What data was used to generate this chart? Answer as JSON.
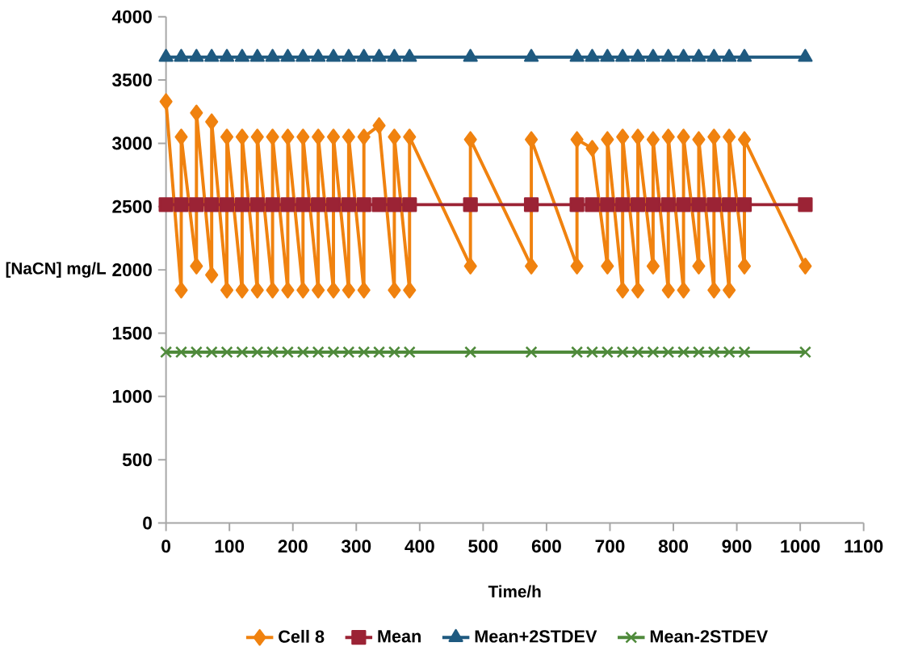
{
  "chart_data": {
    "type": "line",
    "xlabel": "Time/h",
    "ylabel": "[NaCN] mg/L",
    "xlim": [
      0,
      1100
    ],
    "ylim": [
      0,
      4000
    ],
    "xticks": [
      0,
      100,
      200,
      300,
      400,
      500,
      600,
      700,
      800,
      900,
      1000,
      1100
    ],
    "yticks": [
      0,
      500,
      1000,
      1500,
      2000,
      2500,
      3000,
      3500,
      4000
    ],
    "legend": "bottom",
    "series": [
      {
        "name": "Cell 8",
        "color": "#f0820f",
        "marker": "diamond",
        "x": [
          0,
          24,
          24,
          48,
          48,
          72,
          72,
          96,
          96,
          120,
          120,
          144,
          144,
          168,
          168,
          192,
          192,
          216,
          216,
          240,
          240,
          264,
          264,
          288,
          288,
          312,
          312,
          336,
          360,
          360,
          384,
          384,
          480,
          480,
          576,
          576,
          648,
          648,
          672,
          696,
          696,
          720,
          720,
          744,
          744,
          768,
          768,
          792,
          792,
          816,
          816,
          840,
          840,
          864,
          864,
          888,
          888,
          912,
          912,
          1008
        ],
        "values": [
          3330,
          1840,
          3050,
          2030,
          3240,
          1960,
          3170,
          1840,
          3050,
          1840,
          3050,
          1840,
          3050,
          1840,
          3050,
          1840,
          3050,
          1840,
          3050,
          1840,
          3050,
          1840,
          3050,
          1840,
          3050,
          1840,
          3050,
          3140,
          1840,
          3050,
          1840,
          3050,
          2030,
          3030,
          2030,
          3030,
          2030,
          3030,
          2960,
          2030,
          3030,
          1840,
          3050,
          1840,
          3050,
          2030,
          3030,
          1840,
          3050,
          1840,
          3050,
          2030,
          3030,
          1840,
          3050,
          1840,
          3050,
          2030,
          3030,
          2030
        ]
      },
      {
        "name": "Mean",
        "color": "#9b2335",
        "marker": "square",
        "x": [
          0,
          24,
          48,
          72,
          96,
          120,
          144,
          168,
          192,
          216,
          240,
          264,
          288,
          312,
          336,
          360,
          384,
          480,
          576,
          648,
          672,
          696,
          720,
          744,
          768,
          792,
          816,
          840,
          864,
          888,
          912,
          1008
        ],
        "values": [
          2515,
          2515,
          2515,
          2515,
          2515,
          2515,
          2515,
          2515,
          2515,
          2515,
          2515,
          2515,
          2515,
          2515,
          2515,
          2515,
          2515,
          2515,
          2515,
          2515,
          2515,
          2515,
          2515,
          2515,
          2515,
          2515,
          2515,
          2515,
          2515,
          2515,
          2515,
          2515
        ]
      },
      {
        "name": "Mean+2STDEV",
        "color": "#1f5a80",
        "marker": "triangle",
        "x": [
          0,
          24,
          48,
          72,
          96,
          120,
          144,
          168,
          192,
          216,
          240,
          264,
          288,
          312,
          336,
          360,
          384,
          480,
          576,
          648,
          672,
          696,
          720,
          744,
          768,
          792,
          816,
          840,
          864,
          888,
          912,
          1008
        ],
        "values": [
          3680,
          3680,
          3680,
          3680,
          3680,
          3680,
          3680,
          3680,
          3680,
          3680,
          3680,
          3680,
          3680,
          3680,
          3680,
          3680,
          3680,
          3680,
          3680,
          3680,
          3680,
          3680,
          3680,
          3680,
          3680,
          3680,
          3680,
          3680,
          3680,
          3680,
          3680,
          3680
        ]
      },
      {
        "name": "Mean-2STDEV",
        "color": "#4f8a3b",
        "marker": "cross",
        "x": [
          0,
          24,
          48,
          72,
          96,
          120,
          144,
          168,
          192,
          216,
          240,
          264,
          288,
          312,
          336,
          360,
          384,
          480,
          576,
          648,
          672,
          696,
          720,
          744,
          768,
          792,
          816,
          840,
          864,
          888,
          912,
          1008
        ],
        "values": [
          1350,
          1350,
          1350,
          1350,
          1350,
          1350,
          1350,
          1350,
          1350,
          1350,
          1350,
          1350,
          1350,
          1350,
          1350,
          1350,
          1350,
          1350,
          1350,
          1350,
          1350,
          1350,
          1350,
          1350,
          1350,
          1350,
          1350,
          1350,
          1350,
          1350,
          1350,
          1350
        ]
      }
    ]
  }
}
